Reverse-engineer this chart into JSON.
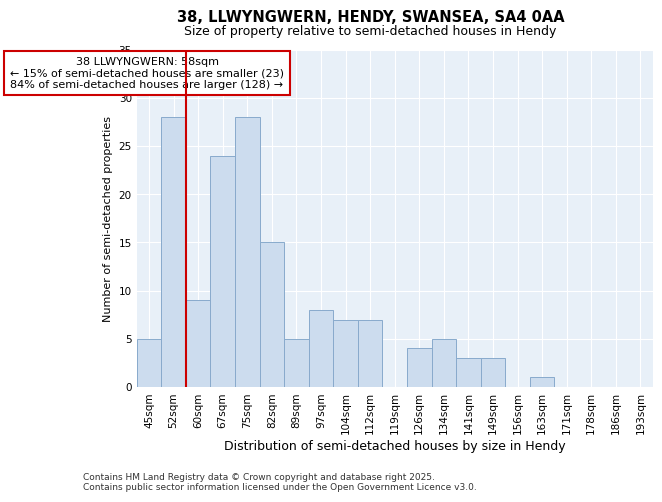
{
  "title1": "38, LLWYNGWERN, HENDY, SWANSEA, SA4 0AA",
  "title2": "Size of property relative to semi-detached houses in Hendy",
  "xlabel": "Distribution of semi-detached houses by size in Hendy",
  "ylabel": "Number of semi-detached properties",
  "categories": [
    "45sqm",
    "52sqm",
    "60sqm",
    "67sqm",
    "75sqm",
    "82sqm",
    "89sqm",
    "97sqm",
    "104sqm",
    "112sqm",
    "119sqm",
    "126sqm",
    "134sqm",
    "141sqm",
    "149sqm",
    "156sqm",
    "163sqm",
    "171sqm",
    "178sqm",
    "186sqm",
    "193sqm"
  ],
  "values": [
    5,
    28,
    9,
    24,
    28,
    15,
    5,
    8,
    7,
    7,
    0,
    4,
    5,
    3,
    3,
    0,
    1,
    0,
    0,
    0,
    0
  ],
  "bar_color": "#ccdcee",
  "bar_edge_color": "#88aacc",
  "background_color": "#ffffff",
  "plot_bg_color": "#e8f0f8",
  "grid_color": "#ffffff",
  "vline_x": 1.5,
  "vline_color": "#cc0000",
  "annotation_title": "38 LLWYNGWERN: 58sqm",
  "annotation_line1": "← 15% of semi-detached houses are smaller (23)",
  "annotation_line2": "84% of semi-detached houses are larger (128) →",
  "annotation_box_color": "#ffffff",
  "annotation_box_edge": "#cc0000",
  "footer1": "Contains HM Land Registry data © Crown copyright and database right 2025.",
  "footer2": "Contains public sector information licensed under the Open Government Licence v3.0.",
  "ylim": [
    0,
    35
  ],
  "yticks": [
    0,
    5,
    10,
    15,
    20,
    25,
    30,
    35
  ],
  "title1_fontsize": 10.5,
  "title2_fontsize": 9,
  "xlabel_fontsize": 9,
  "ylabel_fontsize": 8,
  "tick_fontsize": 7.5,
  "footer_fontsize": 6.5,
  "ann_fontsize": 8
}
